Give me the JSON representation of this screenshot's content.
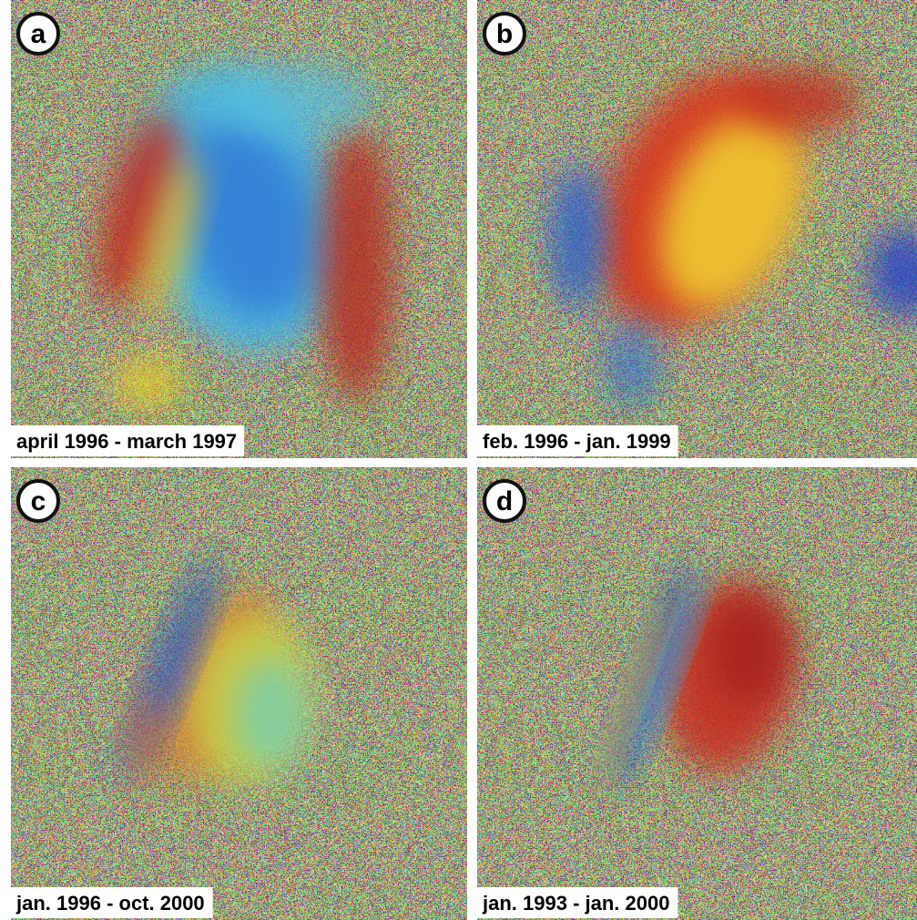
{
  "panels": [
    {
      "label": "a",
      "caption": "april 1996 - march 1997"
    },
    {
      "label": "b",
      "caption": "feb. 1996 - jan. 1999"
    },
    {
      "label": "c",
      "caption": "jan. 1996 - oct. 2000"
    },
    {
      "label": "d",
      "caption": "jan. 1993 - jan. 2000"
    }
  ]
}
